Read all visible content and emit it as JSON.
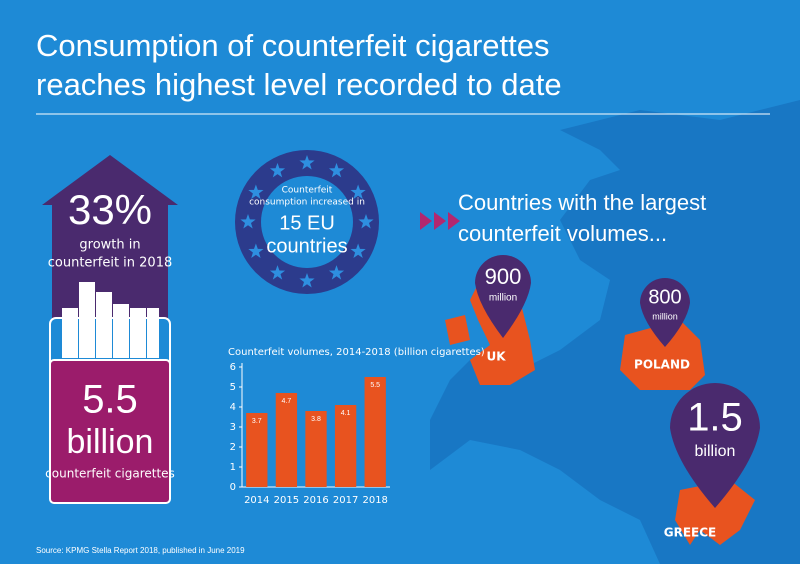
{
  "header": {
    "title_lines": [
      "Consumption of counterfeit cigarettes",
      "reaches highest level recorded to date"
    ]
  },
  "growth": {
    "value": "33%",
    "lines": [
      "growth in",
      "counterfeit in 2018"
    ]
  },
  "total": {
    "value": "5.5",
    "unit": "billion",
    "label": "counterfeit cigarettes"
  },
  "eu": {
    "lines": [
      "Counterfeit",
      "consumption increased in"
    ],
    "big_lines": [
      "15 EU",
      "countries"
    ]
  },
  "countries": {
    "heading_lines": [
      "Countries with the largest",
      "counterfeit volumes..."
    ],
    "items": [
      {
        "value": "900",
        "unit": "million",
        "name": "UK"
      },
      {
        "value": "800",
        "unit": "million",
        "name": "POLAND"
      },
      {
        "value": "1.5",
        "unit": "billion",
        "name": "GREECE"
      }
    ]
  },
  "chart_data": {
    "type": "bar",
    "title": "Counterfeit volumes, 2014-2018 (billion cigarettes)",
    "categories": [
      "2014",
      "2015",
      "2016",
      "2017",
      "2018"
    ],
    "values": [
      3.7,
      4.7,
      3.8,
      4.1,
      5.5
    ],
    "color": "#e8531f",
    "ylim": [
      0,
      6
    ],
    "yticks": [
      0,
      1,
      2,
      3,
      4,
      5,
      6
    ],
    "grid": false
  },
  "source": "Source: KPMG Stella Report 2018, published in June 2019"
}
